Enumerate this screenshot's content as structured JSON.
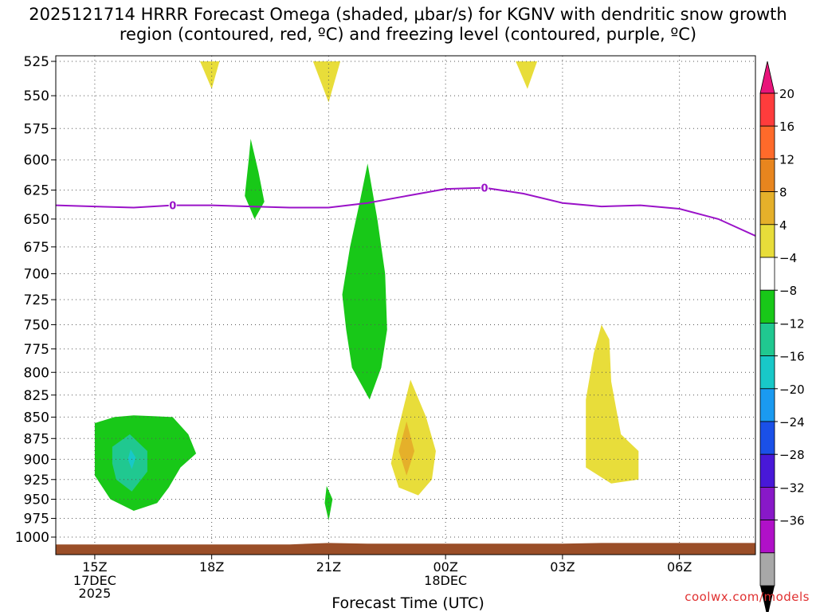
{
  "chart_data": {
    "type": "heatmap",
    "title": "2025121714 HRRR Forecast Omega (shaded, μbar/s) for KGNV with dendritic snow growth region (contoured, red, ºC) and freezing level (contoured, purple, ºC)",
    "xlabel": "Forecast Time (UTC)",
    "ylabel": "",
    "x_tick_labels": [
      "15Z",
      "18Z",
      "21Z",
      "00Z",
      "03Z",
      "06Z"
    ],
    "x_tick_hours": [
      15,
      18,
      21,
      24,
      27,
      30
    ],
    "x_sub_labels": [
      {
        "hour": 15,
        "lines": [
          "17DEC",
          "2025"
        ]
      },
      {
        "hour": 24,
        "lines": [
          "18DEC"
        ]
      }
    ],
    "xlim": [
      14.0,
      31.95
    ],
    "y_pressure_levels": [
      525,
      550,
      575,
      600,
      625,
      650,
      675,
      700,
      725,
      750,
      775,
      800,
      825,
      850,
      875,
      900,
      925,
      950,
      975,
      1000
    ],
    "ylim": [
      525,
      1020
    ],
    "colorbar": {
      "labels": [
        "20",
        "16",
        "12",
        "8",
        "4",
        "−4",
        "−8",
        "−12",
        "−16",
        "−20",
        "−24",
        "−28",
        "−32",
        "−36"
      ],
      "colors": [
        "#ff3c3c",
        "#ff6a2a",
        "#e8851e",
        "#e5b02a",
        "#e8dd3a",
        "#ffffff",
        "#18c818",
        "#20c890",
        "#18c8c8",
        "#1a9af0",
        "#1a50e8",
        "#4818d8",
        "#8818c8",
        "#b010c8",
        "#a8a8a8"
      ],
      "top_color": "#e8147a",
      "bottom_color": "#000000"
    },
    "freezing_level": {
      "label": "0",
      "points": [
        [
          14.0,
          638
        ],
        [
          15.0,
          639
        ],
        [
          16.0,
          640
        ],
        [
          17.0,
          638
        ],
        [
          18.0,
          638
        ],
        [
          19.0,
          639
        ],
        [
          20.0,
          640
        ],
        [
          21.0,
          640
        ],
        [
          22.0,
          636
        ],
        [
          23.0,
          630
        ],
        [
          24.0,
          624
        ],
        [
          25.0,
          623
        ],
        [
          26.0,
          628
        ],
        [
          27.0,
          636
        ],
        [
          28.0,
          639
        ],
        [
          29.0,
          638
        ],
        [
          30.0,
          641
        ],
        [
          31.0,
          650
        ],
        [
          31.95,
          665
        ]
      ],
      "label_hours": [
        17.0,
        25.0
      ],
      "color": "#9a12c8"
    },
    "omega_regions": [
      {
        "name": "ascent-area-1",
        "value_range": "-8 to -4",
        "color": "#18c818",
        "points": [
          [
            15.0,
            857
          ],
          [
            15.5,
            850
          ],
          [
            16.0,
            848
          ],
          [
            16.5,
            849
          ],
          [
            17.0,
            850
          ],
          [
            17.4,
            870
          ],
          [
            17.6,
            893
          ],
          [
            17.2,
            910
          ],
          [
            16.9,
            935
          ],
          [
            16.6,
            955
          ],
          [
            16.0,
            965
          ],
          [
            15.4,
            950
          ],
          [
            15.0,
            920
          ],
          [
            15.0,
            880
          ]
        ]
      },
      {
        "name": "ascent-core-1",
        "value_range": "-12 to -8",
        "color": "#20c890",
        "points": [
          [
            15.45,
            885
          ],
          [
            15.9,
            870
          ],
          [
            16.35,
            890
          ],
          [
            16.35,
            915
          ],
          [
            15.95,
            940
          ],
          [
            15.55,
            925
          ],
          [
            15.45,
            905
          ]
        ]
      },
      {
        "name": "ascent-core-1-inner",
        "value_range": "-16 to -12",
        "color": "#18c8c8",
        "points": [
          [
            15.92,
            888
          ],
          [
            16.05,
            898
          ],
          [
            15.95,
            912
          ],
          [
            15.85,
            900
          ]
        ]
      },
      {
        "name": "ascent-area-2",
        "value_range": "-8 to -4",
        "color": "#18c818",
        "points": [
          [
            19.0,
            583
          ],
          [
            19.2,
            610
          ],
          [
            19.35,
            635
          ],
          [
            19.1,
            650
          ],
          [
            18.85,
            630
          ],
          [
            18.95,
            600
          ]
        ]
      },
      {
        "name": "ascent-area-3",
        "value_range": "-8 to -4",
        "color": "#18c818",
        "points": [
          [
            22.0,
            603
          ],
          [
            22.25,
            650
          ],
          [
            22.45,
            700
          ],
          [
            22.5,
            755
          ],
          [
            22.35,
            795
          ],
          [
            22.05,
            830
          ],
          [
            21.6,
            795
          ],
          [
            21.45,
            755
          ],
          [
            21.35,
            720
          ],
          [
            21.55,
            675
          ],
          [
            21.8,
            635
          ]
        ]
      },
      {
        "name": "ascent-area-4",
        "value_range": "-8 to -4",
        "color": "#18c818",
        "points": [
          [
            20.95,
            933
          ],
          [
            21.1,
            950
          ],
          [
            21.0,
            978
          ],
          [
            20.9,
            955
          ]
        ]
      },
      {
        "name": "descent-area-1",
        "value_range": "4 to 8",
        "color": "#e8dd3a",
        "points": [
          [
            17.7,
            525
          ],
          [
            18.2,
            525
          ],
          [
            18.0,
            545
          ]
        ]
      },
      {
        "name": "descent-area-2",
        "value_range": "4 to 8",
        "color": "#e8dd3a",
        "points": [
          [
            20.6,
            525
          ],
          [
            21.3,
            525
          ],
          [
            21.0,
            555
          ]
        ]
      },
      {
        "name": "descent-area-3",
        "value_range": "4 to 8",
        "color": "#e8dd3a",
        "points": [
          [
            25.8,
            525
          ],
          [
            26.35,
            525
          ],
          [
            26.1,
            545
          ]
        ]
      },
      {
        "name": "descent-area-4",
        "value_range": "4 to 8",
        "color": "#e8dd3a",
        "points": [
          [
            23.1,
            808
          ],
          [
            23.5,
            850
          ],
          [
            23.75,
            890
          ],
          [
            23.65,
            925
          ],
          [
            23.3,
            945
          ],
          [
            22.8,
            935
          ],
          [
            22.6,
            905
          ],
          [
            22.75,
            870
          ]
        ]
      },
      {
        "name": "descent-core-4",
        "value_range": "8 to 12",
        "color": "#e5b02a",
        "points": [
          [
            23.0,
            855
          ],
          [
            23.2,
            890
          ],
          [
            23.0,
            920
          ],
          [
            22.8,
            890
          ]
        ]
      },
      {
        "name": "descent-area-5",
        "value_range": "4 to 8",
        "color": "#e8dd3a",
        "points": [
          [
            28.0,
            750
          ],
          [
            28.2,
            765
          ],
          [
            28.25,
            810
          ],
          [
            28.5,
            870
          ],
          [
            28.95,
            890
          ],
          [
            28.95,
            925
          ],
          [
            28.25,
            930
          ],
          [
            27.6,
            910
          ],
          [
            27.6,
            830
          ],
          [
            27.8,
            780
          ]
        ]
      }
    ],
    "terrain": {
      "color": "#9a4e28",
      "points": [
        [
          14.0,
          1010
        ],
        [
          20.0,
          1010
        ],
        [
          21.0,
          1008
        ],
        [
          22.0,
          1009
        ],
        [
          27.0,
          1009
        ],
        [
          28.0,
          1008
        ],
        [
          31.95,
          1008
        ]
      ]
    }
  },
  "credit": "coolwx.com/models"
}
